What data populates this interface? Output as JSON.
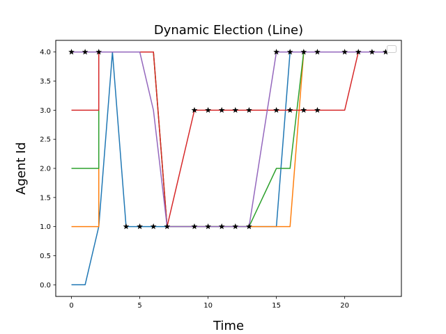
{
  "chart_data": {
    "type": "line",
    "title": "Dynamic Election (Line)",
    "xlabel": "Time",
    "ylabel": "Agent Id",
    "xlim": [
      -1.15,
      24.15
    ],
    "ylim": [
      -0.2,
      4.2
    ],
    "xticks": [
      0,
      5,
      10,
      15,
      20
    ],
    "yticks": [
      0.0,
      0.5,
      1.0,
      1.5,
      2.0,
      2.5,
      3.0,
      3.5,
      4.0
    ],
    "ytick_labels": [
      "0.0",
      "0.5",
      "1.0",
      "1.5",
      "2.0",
      "2.5",
      "3.0",
      "3.5",
      "4.0"
    ],
    "grid": false,
    "legend": "upper right (empty)",
    "series": [
      {
        "color": "#1f77b4",
        "x": [
          0,
          1,
          2,
          3,
          4,
          5,
          6,
          7,
          8,
          9,
          10,
          11,
          12,
          13,
          14,
          15,
          16,
          17,
          18,
          19,
          20,
          21,
          22,
          23
        ],
        "y": [
          0,
          0,
          1,
          4,
          1,
          1,
          1,
          1,
          1,
          1,
          1,
          1,
          1,
          1,
          1,
          1,
          4,
          4,
          4,
          4,
          4,
          4,
          4,
          4
        ]
      },
      {
        "color": "#ff7f0e",
        "x": [
          0,
          1,
          2,
          2,
          3,
          4,
          5,
          6,
          7,
          8,
          9,
          10,
          11,
          12,
          13,
          14,
          15,
          16,
          17,
          18,
          19,
          20,
          21,
          22,
          23
        ],
        "y": [
          1,
          1,
          1,
          4,
          4,
          4,
          4,
          4,
          1,
          1,
          1,
          1,
          1,
          1,
          1,
          1,
          1,
          1,
          4,
          4,
          4,
          4,
          4,
          4,
          4
        ]
      },
      {
        "color": "#2ca02c",
        "x": [
          0,
          1,
          2,
          2,
          3,
          4,
          5,
          6,
          7,
          8,
          9,
          10,
          11,
          12,
          13,
          14,
          15,
          16,
          17,
          18,
          19,
          20,
          21,
          22,
          23
        ],
        "y": [
          2,
          2,
          2,
          4,
          4,
          4,
          4,
          4,
          1,
          1,
          1,
          1,
          1,
          1,
          1,
          1.5,
          2,
          2,
          4,
          4,
          4,
          4,
          4,
          4,
          4
        ]
      },
      {
        "color": "#d62728",
        "x": [
          0,
          1,
          2,
          2,
          3,
          4,
          5,
          6,
          7,
          8,
          9,
          10,
          11,
          12,
          13,
          14,
          15,
          16,
          17,
          18,
          19,
          20,
          21,
          22,
          23
        ],
        "y": [
          3,
          3,
          3,
          4,
          4,
          4,
          4,
          4,
          1,
          2,
          3,
          3,
          3,
          3,
          3,
          3,
          3,
          3,
          3,
          3,
          3,
          3,
          4,
          4,
          4
        ]
      },
      {
        "color": "#9467bd",
        "x": [
          0,
          1,
          2,
          3,
          4,
          5,
          6,
          7,
          8,
          9,
          10,
          11,
          12,
          13,
          14,
          15,
          16,
          17,
          18,
          19,
          20,
          21,
          22,
          23
        ],
        "y": [
          4,
          4,
          4,
          4,
          4,
          4,
          3,
          1,
          1,
          1,
          1,
          1,
          1,
          1,
          2.5,
          4,
          4,
          4,
          4,
          4,
          4,
          4,
          4,
          4
        ]
      }
    ],
    "markers": {
      "symbol": "star",
      "color": "#000000",
      "points": [
        [
          0,
          4
        ],
        [
          1,
          4
        ],
        [
          2,
          4
        ],
        [
          4,
          1
        ],
        [
          5,
          1
        ],
        [
          6,
          1
        ],
        [
          7,
          1
        ],
        [
          9,
          1
        ],
        [
          10,
          1
        ],
        [
          11,
          1
        ],
        [
          12,
          1
        ],
        [
          13,
          1
        ],
        [
          9,
          3
        ],
        [
          10,
          3
        ],
        [
          11,
          3
        ],
        [
          12,
          3
        ],
        [
          13,
          3
        ],
        [
          15,
          3
        ],
        [
          16,
          3
        ],
        [
          17,
          3
        ],
        [
          18,
          3
        ],
        [
          15,
          4
        ],
        [
          16,
          4
        ],
        [
          17,
          4
        ],
        [
          18,
          4
        ],
        [
          20,
          4
        ],
        [
          21,
          4
        ],
        [
          22,
          4
        ],
        [
          23,
          4
        ]
      ]
    }
  }
}
